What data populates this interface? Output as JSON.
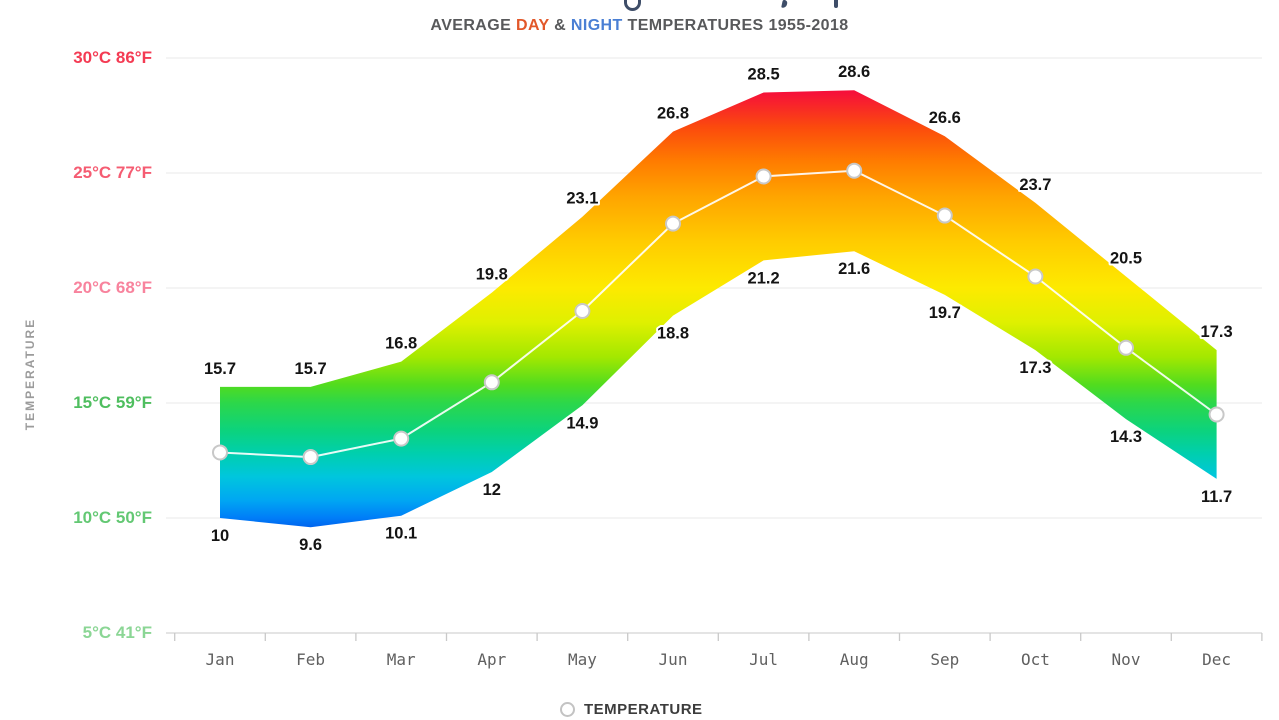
{
  "page": {
    "main_title_cropped": true,
    "subtitle": {
      "parts": [
        {
          "text": "AVERAGE ",
          "color": "#58595b"
        },
        {
          "text": "DAY",
          "color": "#e2582a"
        },
        {
          "text": " & ",
          "color": "#58595b"
        },
        {
          "text": "NIGHT",
          "color": "#4a7fd4"
        },
        {
          "text": " TEMPERATURES 1955-2018",
          "color": "#58595b"
        }
      ]
    },
    "legend": {
      "label": "TEMPERATURE"
    }
  },
  "chart_data": {
    "type": "area",
    "subtitle": "AVERAGE DAY & NIGHT TEMPERATURES 1955-2018",
    "categories": [
      "Jan",
      "Feb",
      "Mar",
      "Apr",
      "May",
      "Jun",
      "Jul",
      "Aug",
      "Sep",
      "Oct",
      "Nov",
      "Dec"
    ],
    "series": [
      {
        "name": "DAY",
        "role": "band-top",
        "values": [
          15.7,
          15.7,
          16.8,
          19.8,
          23.1,
          26.8,
          28.5,
          28.6,
          26.6,
          23.7,
          20.5,
          17.3
        ]
      },
      {
        "name": "NIGHT",
        "role": "band-bottom",
        "values": [
          10,
          9.6,
          10.1,
          12,
          14.9,
          18.8,
          21.2,
          21.6,
          19.7,
          17.3,
          14.3,
          11.7
        ]
      }
    ],
    "midline": {
      "name": "TEMPERATURE",
      "derivation": "average of DAY and NIGHT values"
    },
    "ylabel": "TEMPERATURE",
    "xlabel": "",
    "grid": true,
    "legend_position": "bottom",
    "ylim_displayed": [
      5,
      30
    ],
    "y_ticks": [
      {
        "celsius": "30°C",
        "fahrenheit": "86°F",
        "value": 30,
        "label_color": "#f43b53"
      },
      {
        "celsius": "25°C",
        "fahrenheit": "77°F",
        "value": 25,
        "label_color": "#f55c72"
      },
      {
        "celsius": "20°C",
        "fahrenheit": "68°F",
        "value": 20,
        "label_color": "#f8839d"
      },
      {
        "celsius": "15°C",
        "fahrenheit": "59°F",
        "value": 15,
        "label_color": "#4fbe5f"
      },
      {
        "celsius": "10°C",
        "fahrenheit": "50°F",
        "value": 10,
        "label_color": "#63c873"
      },
      {
        "celsius": "5°C",
        "fahrenheit": "41°F",
        "value": 5,
        "label_color": "#8bd695"
      }
    ],
    "colormap": [
      {
        "t": 30.0,
        "color": "#ef0038"
      },
      {
        "t": 28.5,
        "color": "#f6103a"
      },
      {
        "t": 27.0,
        "color": "#fb4a0d"
      },
      {
        "t": 25.5,
        "color": "#ff7c00"
      },
      {
        "t": 24.0,
        "color": "#ffa400"
      },
      {
        "t": 22.0,
        "color": "#ffcc00"
      },
      {
        "t": 20.0,
        "color": "#fdea00"
      },
      {
        "t": 18.5,
        "color": "#dff000"
      },
      {
        "t": 17.0,
        "color": "#a3e800"
      },
      {
        "t": 15.8,
        "color": "#52dc1e"
      },
      {
        "t": 15.0,
        "color": "#2cd74a"
      },
      {
        "t": 13.8,
        "color": "#0cd37d"
      },
      {
        "t": 12.8,
        "color": "#00cfae"
      },
      {
        "t": 11.8,
        "color": "#00c6dd"
      },
      {
        "t": 10.8,
        "color": "#00a8f2"
      },
      {
        "t": 10.0,
        "color": "#007df8"
      },
      {
        "t": 9.4,
        "color": "#0056e9"
      }
    ],
    "line_style": {
      "mean_line_color": "#ffffff",
      "marker_fill": "#ffffff",
      "marker_ring": "#c8c8c8"
    }
  }
}
